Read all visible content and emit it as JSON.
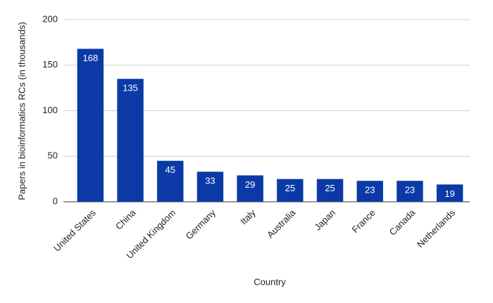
{
  "chart_data": {
    "type": "bar",
    "x_label": "Country",
    "y_label": "Papers in bioinformatics RCs (in thousands)",
    "categories": [
      "United States",
      "China",
      "United Kingdom",
      "Germany",
      "Italy",
      "Australia",
      "Japan",
      "France",
      "Canada",
      "Netherlands"
    ],
    "values": [
      168,
      135,
      45,
      33,
      29,
      25,
      25,
      23,
      23,
      19
    ],
    "color": "#0b3aa6",
    "ylim": [
      0,
      200
    ],
    "yticks": [
      0,
      50,
      100,
      150,
      200
    ],
    "grid": true
  }
}
